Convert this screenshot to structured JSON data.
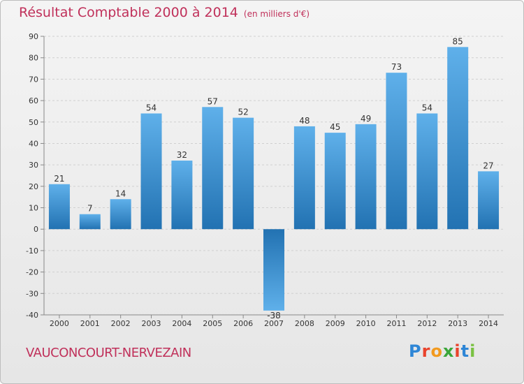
{
  "header": {
    "title": "Résultat Comptable 2000 à 2014",
    "subtitle": "(en milliers d'€)"
  },
  "footer": {
    "place": "VAUCONCOURT-NERVEZAIN",
    "logo": "Proxiti"
  },
  "colors": {
    "accent": "#c0305a",
    "bar_light": "#5fb0ea",
    "bar_dark": "#2272b2"
  },
  "chart_data": {
    "type": "bar",
    "categories": [
      "2000",
      "2001",
      "2002",
      "2003",
      "2004",
      "2005",
      "2006",
      "2007",
      "2008",
      "2009",
      "2010",
      "2011",
      "2012",
      "2013",
      "2014"
    ],
    "values": [
      21,
      7,
      14,
      54,
      32,
      57,
      52,
      -38,
      48,
      45,
      49,
      73,
      54,
      85,
      27
    ],
    "title": "Résultat Comptable 2000 à 2014",
    "ylim": [
      -40,
      90
    ],
    "yticks": [
      90,
      80,
      70,
      60,
      50,
      40,
      30,
      20,
      10,
      0,
      -10,
      -20,
      -30,
      -40
    ],
    "grid": true
  }
}
